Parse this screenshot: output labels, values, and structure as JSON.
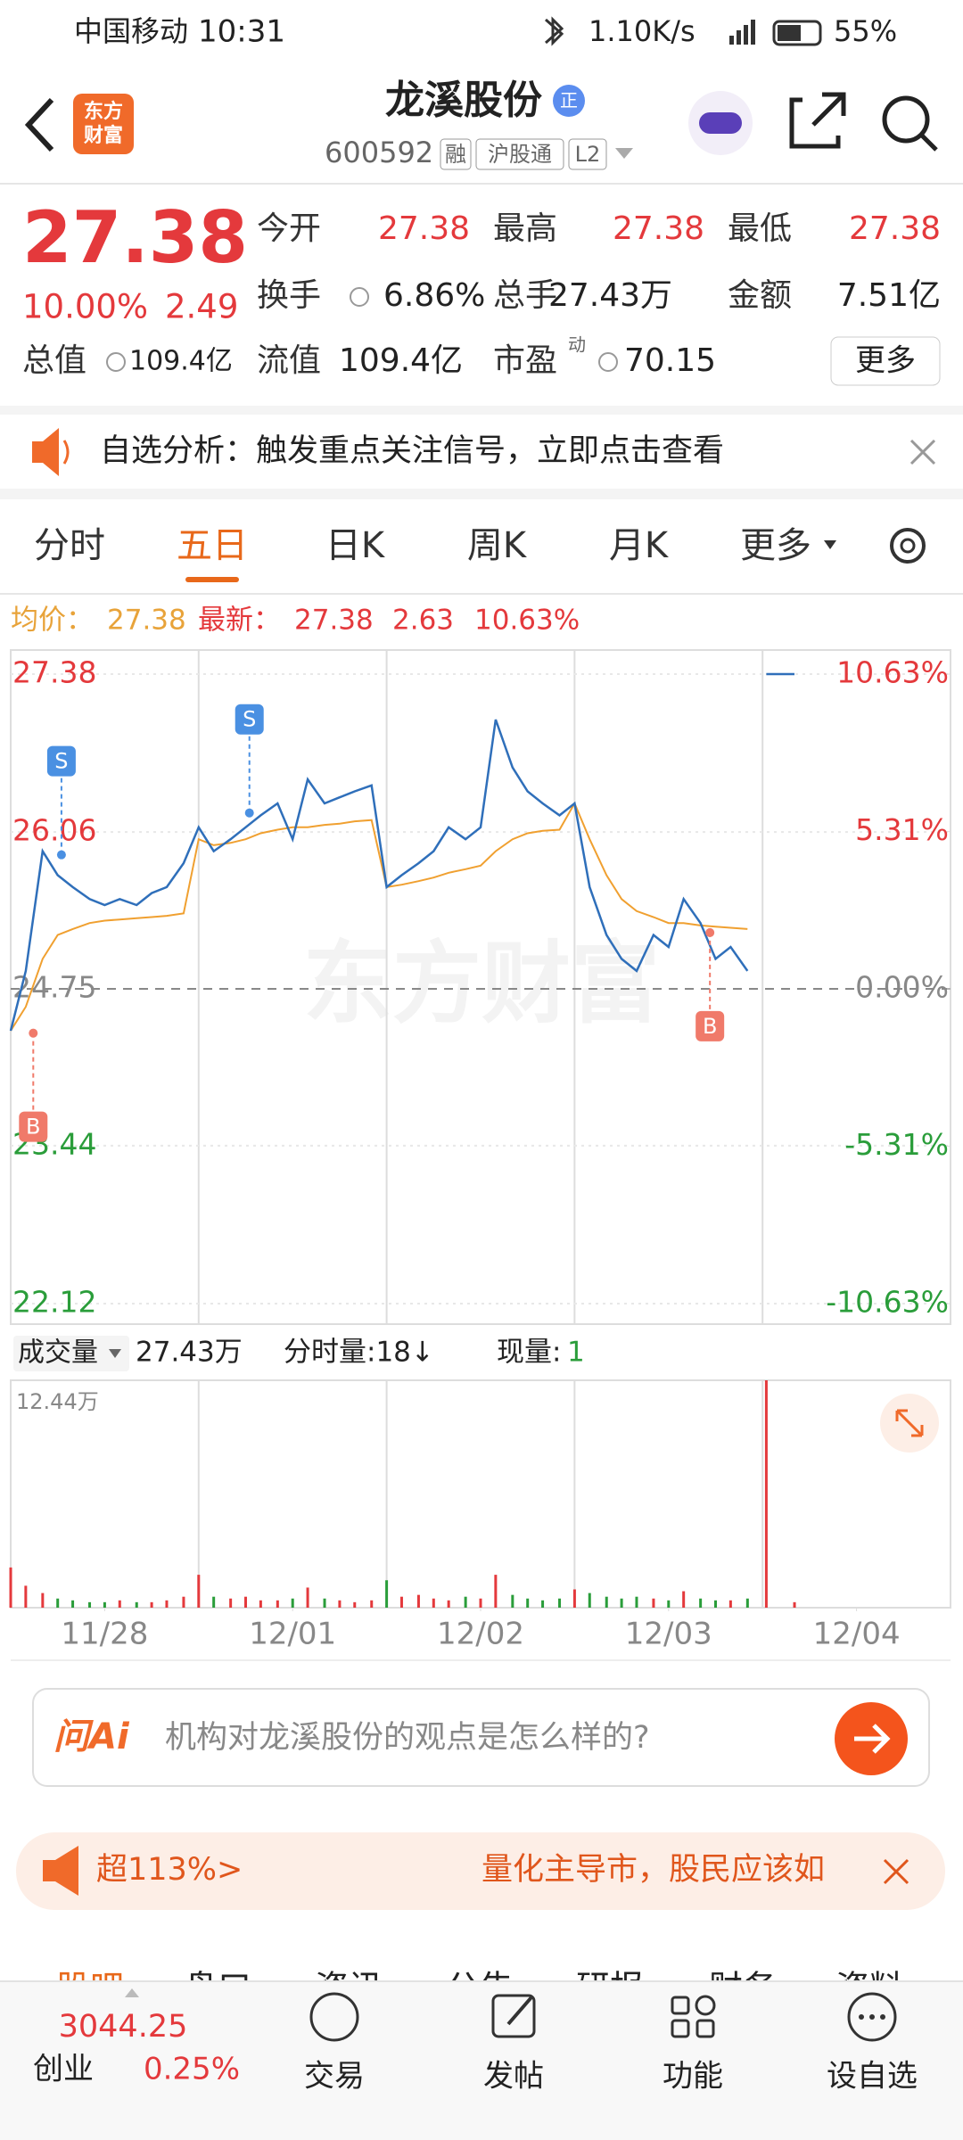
{
  "status_bar": {
    "carrier": "中国移动",
    "time": "10:31",
    "speed": "1.10K/s",
    "battery": "55%"
  },
  "header": {
    "logo": [
      "东方",
      "财富"
    ],
    "title": "龙溪股份",
    "badge": "正",
    "code": "600592",
    "tags": [
      "融",
      "沪股通",
      "L2"
    ]
  },
  "quote": {
    "price": "27.38",
    "change_pct": "10.00%",
    "change": "2.49",
    "fields": [
      {
        "label": "今开",
        "value": "27.38"
      },
      {
        "label": "最高",
        "value": "27.38"
      },
      {
        "label": "最低",
        "value": "27.38"
      },
      {
        "label": "换手",
        "value": "6.86%"
      },
      {
        "label": "总手",
        "value": "27.43万"
      },
      {
        "label": "金额",
        "value": "7.51亿"
      },
      {
        "label": "总值",
        "value": "109.4亿"
      },
      {
        "label": "流值",
        "value": "109.4亿"
      },
      {
        "label": "市盈",
        "sup": "动",
        "value": "70.15"
      }
    ],
    "more": "更多"
  },
  "notice": {
    "text": "自选分析：触发重点关注信号，立即点击查看"
  },
  "tabs": [
    "分时",
    "五日",
    "日K",
    "周K",
    "月K",
    "更多"
  ],
  "active_tab": 1,
  "info": {
    "avg_label": "均价：",
    "avg": "27.38",
    "last_label": "最新：",
    "last": "27.38",
    "change": "2.63",
    "change_pct": "10.63%"
  },
  "chart_data": [
    {
      "type": "line",
      "x": [
        0,
        0.08,
        0.17,
        0.25,
        0.33,
        0.42,
        0.5,
        0.58,
        0.67,
        0.75,
        0.83,
        0.92,
        1,
        1.08,
        1.17,
        1.25,
        1.33,
        1.42,
        1.5,
        1.58,
        1.67,
        1.75,
        1.83,
        1.92,
        2,
        2.08,
        2.17,
        2.25,
        2.33,
        2.42,
        2.5,
        2.58,
        2.67,
        2.75,
        2.83,
        2.92,
        3,
        3.08,
        3.17,
        3.25,
        3.33,
        3.42,
        3.5,
        3.58,
        3.67,
        3.75,
        3.83,
        3.92,
        4,
        4.02,
        4.17
      ],
      "xlim": [
        0,
        5
      ],
      "xticks": [
        {
          "value": 0.5,
          "label": "11/28"
        },
        {
          "value": 1.5,
          "label": "12/01"
        },
        {
          "value": 2.5,
          "label": "12/02"
        },
        {
          "value": 3.5,
          "label": "12/03"
        },
        {
          "value": 4.5,
          "label": "12/04"
        }
      ],
      "ylim": [
        22.12,
        27.38
      ],
      "yticks": [
        27.38,
        26.06,
        24.75,
        23.44,
        22.12
      ],
      "y2lim": [
        -10.63,
        10.63
      ],
      "y2ticks": [
        {
          "value": 10.63,
          "label": "10.63%"
        },
        {
          "value": 5.31,
          "label": "5.31%"
        },
        {
          "value": 0,
          "label": "0.00%"
        },
        {
          "value": -5.31,
          "label": "-5.31%"
        },
        {
          "value": -10.63,
          "label": "-10.63%"
        }
      ],
      "series": [
        {
          "color": "#2f6fba",
          "values": [
            24.4,
            24.9,
            25.9,
            25.7,
            25.6,
            25.5,
            25.45,
            25.5,
            25.45,
            25.55,
            25.6,
            25.8,
            26.1,
            25.9,
            26.0,
            26.1,
            26.2,
            26.3,
            26.0,
            26.5,
            26.3,
            26.35,
            26.4,
            26.45,
            25.6,
            25.7,
            25.8,
            25.9,
            26.1,
            26.0,
            26.1,
            27.0,
            26.6,
            26.4,
            26.3,
            26.2,
            26.3,
            25.6,
            25.2,
            25.0,
            24.9,
            25.2,
            25.1,
            25.5,
            25.3,
            25.0,
            25.1,
            24.9,
            null,
            27.38,
            27.38
          ]
        },
        {
          "color": "#f0a030",
          "values": [
            24.4,
            24.6,
            25.0,
            25.2,
            25.25,
            25.3,
            25.32,
            25.33,
            25.34,
            25.35,
            25.36,
            25.38,
            26.0,
            25.95,
            25.97,
            26.0,
            26.05,
            26.08,
            26.1,
            26.1,
            26.12,
            26.13,
            26.15,
            26.16,
            25.6,
            25.62,
            25.65,
            25.68,
            25.72,
            25.75,
            25.78,
            25.9,
            26.0,
            26.05,
            26.07,
            26.08,
            26.3,
            26.0,
            25.7,
            25.5,
            25.4,
            25.35,
            25.3,
            25.3,
            25.28,
            25.27,
            25.26,
            25.25,
            null,
            27.38,
            27.38
          ]
        }
      ],
      "annotations": [
        {
          "label": "S",
          "x": 0.27,
          "y": 25.87,
          "color": "#4a90e2"
        },
        {
          "label": "S",
          "x": 1.27,
          "y": 26.22,
          "color": "#4a90e2"
        },
        {
          "label": "B",
          "x": 0.12,
          "y": 24.38,
          "color": "#f07a6a"
        },
        {
          "label": "B",
          "x": 3.72,
          "y": 25.22,
          "color": "#f07a6a"
        }
      ],
      "watermark": "东方财富"
    },
    {
      "type": "bar",
      "label": "成交量",
      "total": "27.43万",
      "per_minute": "分时量:18↓",
      "current_label": "现量:",
      "current": "1",
      "x": [
        0,
        0.08,
        0.17,
        0.25,
        0.33,
        0.42,
        0.5,
        0.58,
        0.67,
        0.75,
        0.83,
        0.92,
        1,
        1.08,
        1.17,
        1.25,
        1.33,
        1.42,
        1.5,
        1.58,
        1.67,
        1.75,
        1.83,
        1.92,
        2,
        2.08,
        2.17,
        2.25,
        2.33,
        2.42,
        2.5,
        2.58,
        2.67,
        2.75,
        2.83,
        2.92,
        3,
        3.08,
        3.17,
        3.25,
        3.33,
        3.42,
        3.5,
        3.58,
        3.67,
        3.75,
        3.83,
        3.92,
        4,
        4.02,
        4.17
      ],
      "values": [
        2.2,
        1.2,
        0.8,
        0.5,
        0.4,
        0.3,
        0.3,
        0.4,
        0.3,
        0.3,
        0.4,
        0.6,
        1.8,
        0.6,
        0.5,
        0.6,
        0.4,
        0.4,
        0.5,
        1.1,
        0.5,
        0.4,
        0.3,
        0.4,
        1.5,
        0.6,
        0.7,
        0.5,
        0.4,
        0.6,
        0.5,
        1.8,
        0.7,
        0.5,
        0.4,
        0.5,
        1.0,
        0.8,
        0.6,
        0.5,
        0.6,
        0.5,
        0.4,
        0.9,
        0.5,
        0.4,
        0.4,
        0.5,
        null,
        12.44,
        0.3
      ],
      "xlim": [
        0,
        5
      ],
      "ylim": [
        0,
        12.44
      ],
      "yticks": [
        {
          "value": 12.44,
          "label": "12.44万"
        }
      ],
      "colors": {
        "up": "#e4393c",
        "down": "#2a9d3a"
      }
    }
  ],
  "ai": {
    "logo": "问Ai",
    "prompt": "机构对龙溪股份的观点是怎么样的?"
  },
  "ticker": {
    "left": "超113%>",
    "text": "量化主导市，股民应该如"
  },
  "section_tabs": [
    "股吧",
    "盘口",
    "资讯",
    "公告",
    "研报",
    "财务",
    "资料"
  ],
  "bottom_nav": {
    "index_value": "3044.25",
    "index_name": "创业",
    "index_change": "0.25%",
    "items": [
      "交易",
      "发帖",
      "功能",
      "设自选"
    ]
  }
}
